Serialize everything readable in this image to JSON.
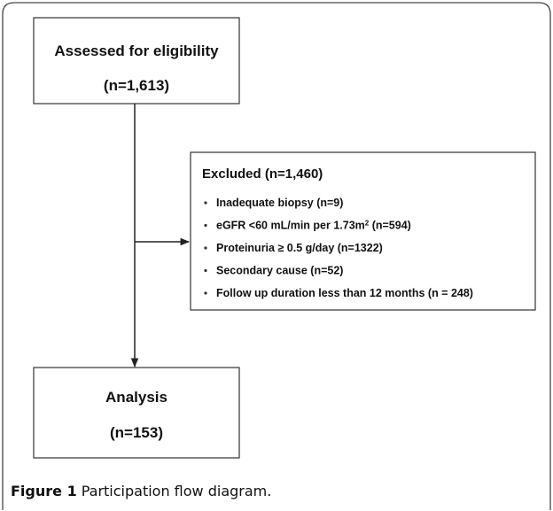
{
  "boxes": {
    "assessed": {
      "title": "Assessed for eligibility",
      "count": "(n=1,613)"
    },
    "excluded": {
      "title": "Excluded  (n=1,460)",
      "items": [
        {
          "parts": [
            "Inadequate biopsy (n=9)"
          ]
        },
        {
          "parts": [
            "eGFR <60 mL/min per 1.73m",
            "2",
            " (n=594)"
          ]
        },
        {
          "parts": [
            "Proteinuria ≥ 0.5 g/day (n=1322)"
          ]
        },
        {
          "parts": [
            "Secondary cause (n=52)"
          ]
        },
        {
          "parts": [
            "Follow up duration less than 12 months (n = 248)"
          ]
        }
      ]
    },
    "analysis": {
      "title": "Analysis",
      "count": "(n=153)"
    }
  },
  "caption": {
    "label": "Figure 1",
    "text": "Participation flow diagram."
  }
}
